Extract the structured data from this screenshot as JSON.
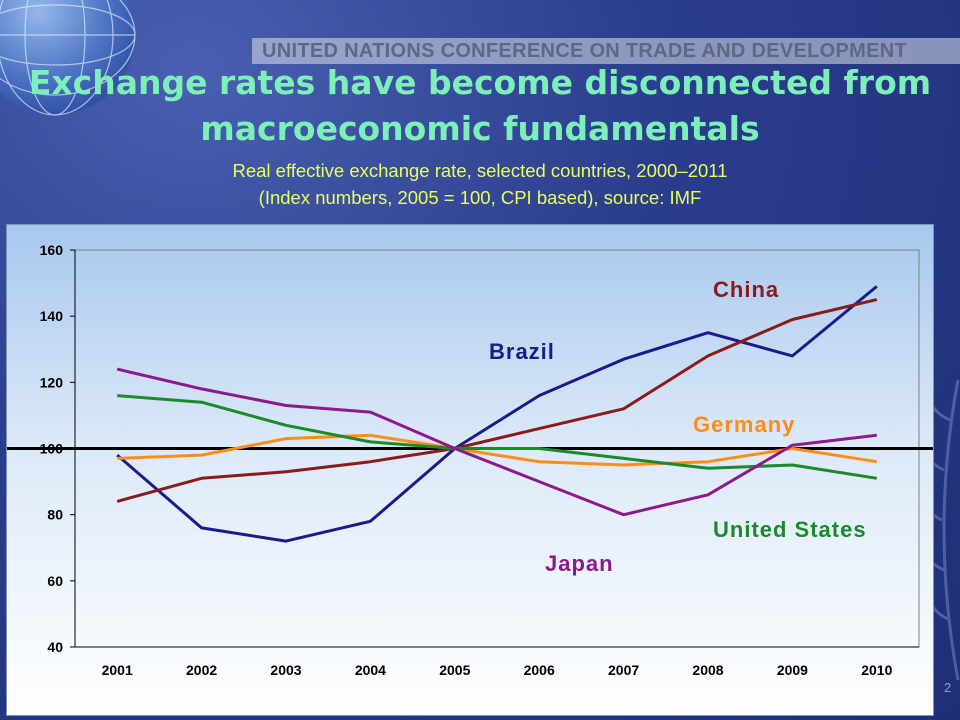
{
  "slide": {
    "organization": "UNITED NATIONS CONFERENCE ON TRADE AND DEVELOPMENT",
    "title": "Exchange rates have become disconnected from macroeconomic fundamentals",
    "subtitle_line1": "Real effective exchange rate, selected countries, 2000–2011",
    "subtitle_line2": "(Index numbers, 2005 = 100, CPI based), source: IMF",
    "page_number": "2"
  },
  "chart_data": {
    "type": "line",
    "categories": [
      "2001",
      "2002",
      "2003",
      "2004",
      "2005",
      "2006",
      "2007",
      "2008",
      "2009",
      "2010"
    ],
    "ylim": [
      40,
      160
    ],
    "yticks": [
      40,
      60,
      80,
      100,
      120,
      140,
      160
    ],
    "reference_line": 100,
    "series": [
      {
        "name": "Brazil",
        "color": "#1a1a8c",
        "values": [
          98,
          76,
          72,
          78,
          100,
          116,
          127,
          135,
          128,
          149
        ]
      },
      {
        "name": "China",
        "color": "#8b1a1a",
        "values": [
          84,
          91,
          93,
          96,
          100,
          106,
          112,
          128,
          139,
          145
        ]
      },
      {
        "name": "Germany",
        "color": "#ff8c1a",
        "values": [
          97,
          98,
          103,
          104,
          100,
          96,
          95,
          96,
          100,
          96
        ]
      },
      {
        "name": "United States",
        "color": "#1a8a2a",
        "values": [
          116,
          114,
          107,
          102,
          100,
          100,
          97,
          94,
          95,
          91
        ]
      },
      {
        "name": "Japan",
        "color": "#8c1a8c",
        "values": [
          124,
          118,
          113,
          111,
          100,
          90,
          80,
          86,
          101,
          104
        ]
      }
    ]
  }
}
